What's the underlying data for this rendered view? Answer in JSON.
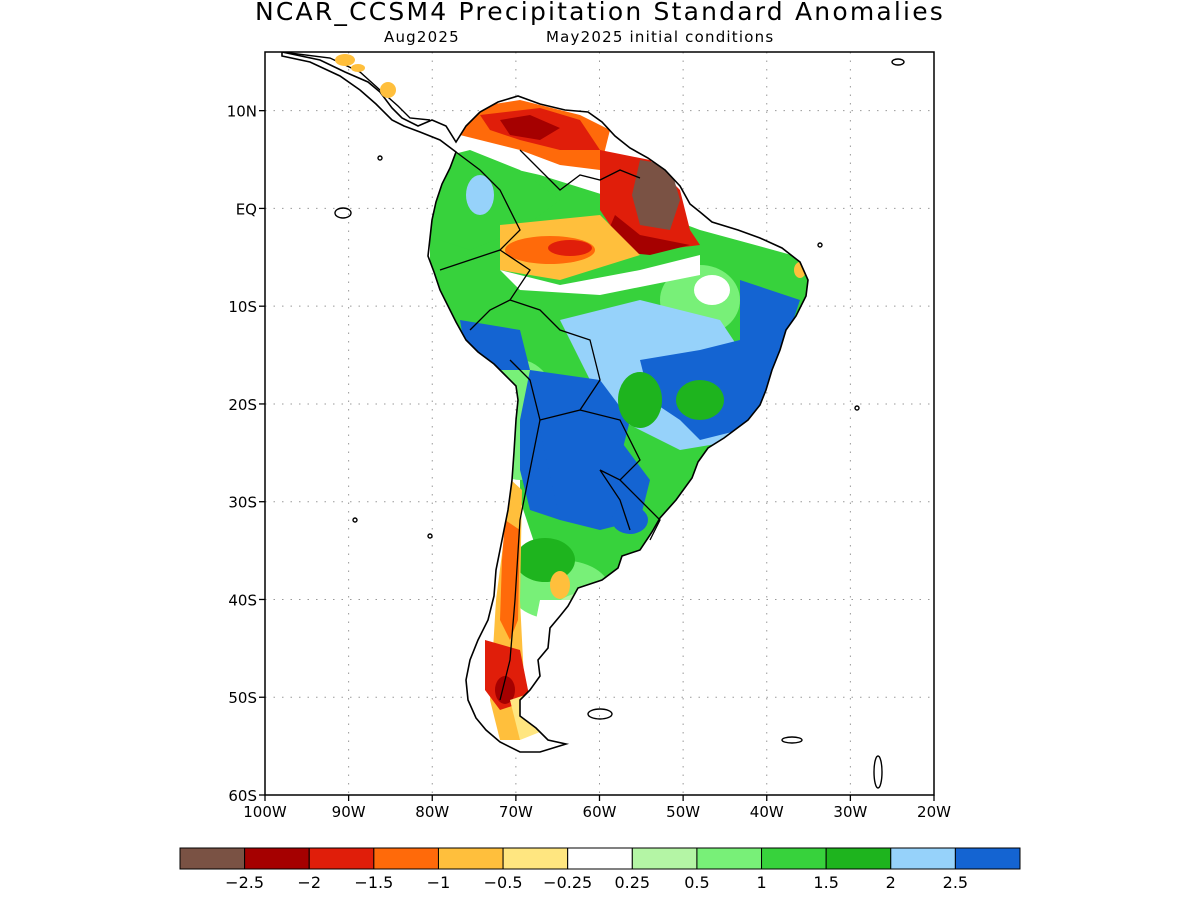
{
  "title": "NCAR_CCSM4 Precipitation Standard Anomalies",
  "subtitle_left": "Aug2025",
  "subtitle_right": "May2025 initial conditions",
  "map": {
    "lat_range": [
      -60,
      16
    ],
    "lon_range": [
      -100,
      -20
    ],
    "lat_ticks": [
      {
        "value": 10,
        "label": "10N"
      },
      {
        "value": 0,
        "label": "EQ"
      },
      {
        "value": -10,
        "label": "10S"
      },
      {
        "value": -20,
        "label": "20S"
      },
      {
        "value": -30,
        "label": "30S"
      },
      {
        "value": -40,
        "label": "40S"
      },
      {
        "value": -50,
        "label": "50S"
      },
      {
        "value": -60,
        "label": "60S"
      }
    ],
    "lon_ticks": [
      {
        "value": -100,
        "label": "100W"
      },
      {
        "value": -90,
        "label": "90W"
      },
      {
        "value": -80,
        "label": "80W"
      },
      {
        "value": -70,
        "label": "70W"
      },
      {
        "value": -60,
        "label": "60W"
      },
      {
        "value": -50,
        "label": "50W"
      },
      {
        "value": -40,
        "label": "40W"
      },
      {
        "value": -30,
        "label": "30W"
      },
      {
        "value": -20,
        "label": "20W"
      }
    ],
    "grid": "dotted",
    "colors": {
      "land_outline": "#000000",
      "dry_extreme": "#7a5244",
      "dry_strong": "#a50000",
      "dry": "#e01e0a",
      "dry_mod": "#ff6a0a",
      "dry_weak": "#ffbf3c",
      "dry_slight": "#ffe680",
      "neutral": "#ffffff",
      "wet_slight": "#b4f5a5",
      "wet_weak": "#78f078",
      "wet_mod": "#37d23c",
      "wet": "#1eb41e",
      "wet_strong": "#96d2fa",
      "wet_extreme": "#1464d2"
    },
    "regions": [
      {
        "name": "amazon-wet-band",
        "color": "wet_mod"
      },
      {
        "name": "southeast-wet-core",
        "color": "wet_extreme"
      },
      {
        "name": "northern-dry-band",
        "color": "dry"
      },
      {
        "name": "guiana-extreme-dry",
        "color": "dry_extreme"
      },
      {
        "name": "chile-dry-strip",
        "color": "dry_mod"
      }
    ]
  },
  "colorbar": {
    "colors": [
      "#7a5244",
      "#a50000",
      "#e01e0a",
      "#ff6a0a",
      "#ffbf3c",
      "#ffe680",
      "#ffffff",
      "#b4f5a5",
      "#78f078",
      "#37d23c",
      "#1eb41e",
      "#96d2fa",
      "#1464d2"
    ],
    "labels": [
      "−2.5",
      "−2",
      "−1.5",
      "−1",
      "−0.5",
      "−0.25",
      "0.25",
      "0.5",
      "1",
      "1.5",
      "2",
      "2.5"
    ]
  }
}
